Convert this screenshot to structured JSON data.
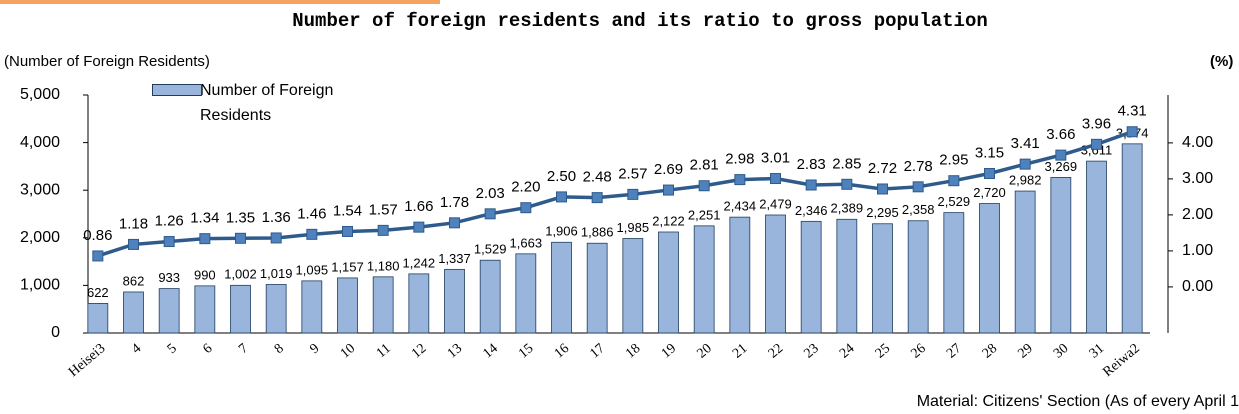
{
  "chart_data": {
    "type": "bar_line",
    "title": "Number of foreign residents and its ratio to gross population",
    "y_label": "(Number of Foreign Residents)",
    "y2_label": "(%)",
    "source": "Material: Citizens' Section (As of every April 1",
    "categories": [
      "Heisei3",
      "4",
      "5",
      "6",
      "7",
      "8",
      "9",
      "10",
      "11",
      "12",
      "13",
      "14",
      "15",
      "16",
      "17",
      "18",
      "19",
      "20",
      "21",
      "22",
      "23",
      "24",
      "25",
      "26",
      "27",
      "28",
      "29",
      "30",
      "31",
      "Reiwa2"
    ],
    "series": [
      {
        "name": "Number of Foreign Residents",
        "type": "bar",
        "color": "#9ab5dc",
        "axis": "y",
        "values": [
          622,
          862,
          933,
          990,
          1002,
          1019,
          1095,
          1157,
          1180,
          1242,
          1337,
          1529,
          1663,
          1906,
          1886,
          1985,
          2122,
          2251,
          2434,
          2479,
          2346,
          2389,
          2295,
          2358,
          2529,
          2720,
          2982,
          3269,
          3611,
          3974
        ],
        "value_labels": [
          "622",
          "862",
          "933",
          "990",
          "1,002",
          "1,019",
          "1,095",
          "1,157",
          "1,180",
          "1,242",
          "1,337",
          "1,529",
          "1,663",
          "1,906",
          "1,886",
          "1,985",
          "2,122",
          "2,251",
          "2,434",
          "2,479",
          "2,346",
          "2,389",
          "2,295",
          "2,358",
          "2,529",
          "2,720",
          "2,982",
          "3,269",
          "3,611",
          "3,974"
        ]
      },
      {
        "type": "line",
        "color": "#2e5b8c",
        "axis": "y2",
        "values": [
          0.86,
          1.18,
          1.26,
          1.34,
          1.35,
          1.36,
          1.46,
          1.54,
          1.57,
          1.66,
          1.78,
          2.03,
          2.2,
          2.5,
          2.48,
          2.57,
          2.69,
          2.81,
          2.98,
          3.01,
          2.83,
          2.85,
          2.72,
          2.78,
          2.95,
          3.15,
          3.41,
          3.66,
          3.96,
          4.31
        ],
        "value_labels": [
          "0.86",
          "1.18",
          "1.26",
          "1.34",
          "1.35",
          "1.36",
          "1.46",
          "1.54",
          "1.57",
          "1.66",
          "1.78",
          "2.03",
          "2.20",
          "2.50",
          "2.48",
          "2.57",
          "2.69",
          "2.81",
          "2.98",
          "3.01",
          "2.83",
          "2.85",
          "2.72",
          "2.78",
          "2.95",
          "3.15",
          "3.41",
          "3.66",
          "3.96",
          "4.31"
        ]
      }
    ],
    "ylim": [
      0,
      5000
    ],
    "yticks": [
      0,
      {
        "value": 1000,
        "label": "1,000"
      },
      {
        "value": 2000,
        "label": "2,000"
      },
      {
        "value": 3000,
        "label": "3,000"
      },
      {
        "value": 4000,
        "label": "4,000"
      },
      {
        "value": 5000,
        "label": "5,000"
      }
    ],
    "y2lim": [
      -1.28,
      5.33
    ],
    "y2ticks": [
      {
        "value": 0,
        "label": "0.00"
      },
      {
        "value": 1,
        "label": "1.00"
      },
      {
        "value": 2,
        "label": "2.00"
      },
      {
        "value": 3,
        "label": "3.00"
      },
      {
        "value": 4,
        "label": "4.00"
      }
    ]
  }
}
